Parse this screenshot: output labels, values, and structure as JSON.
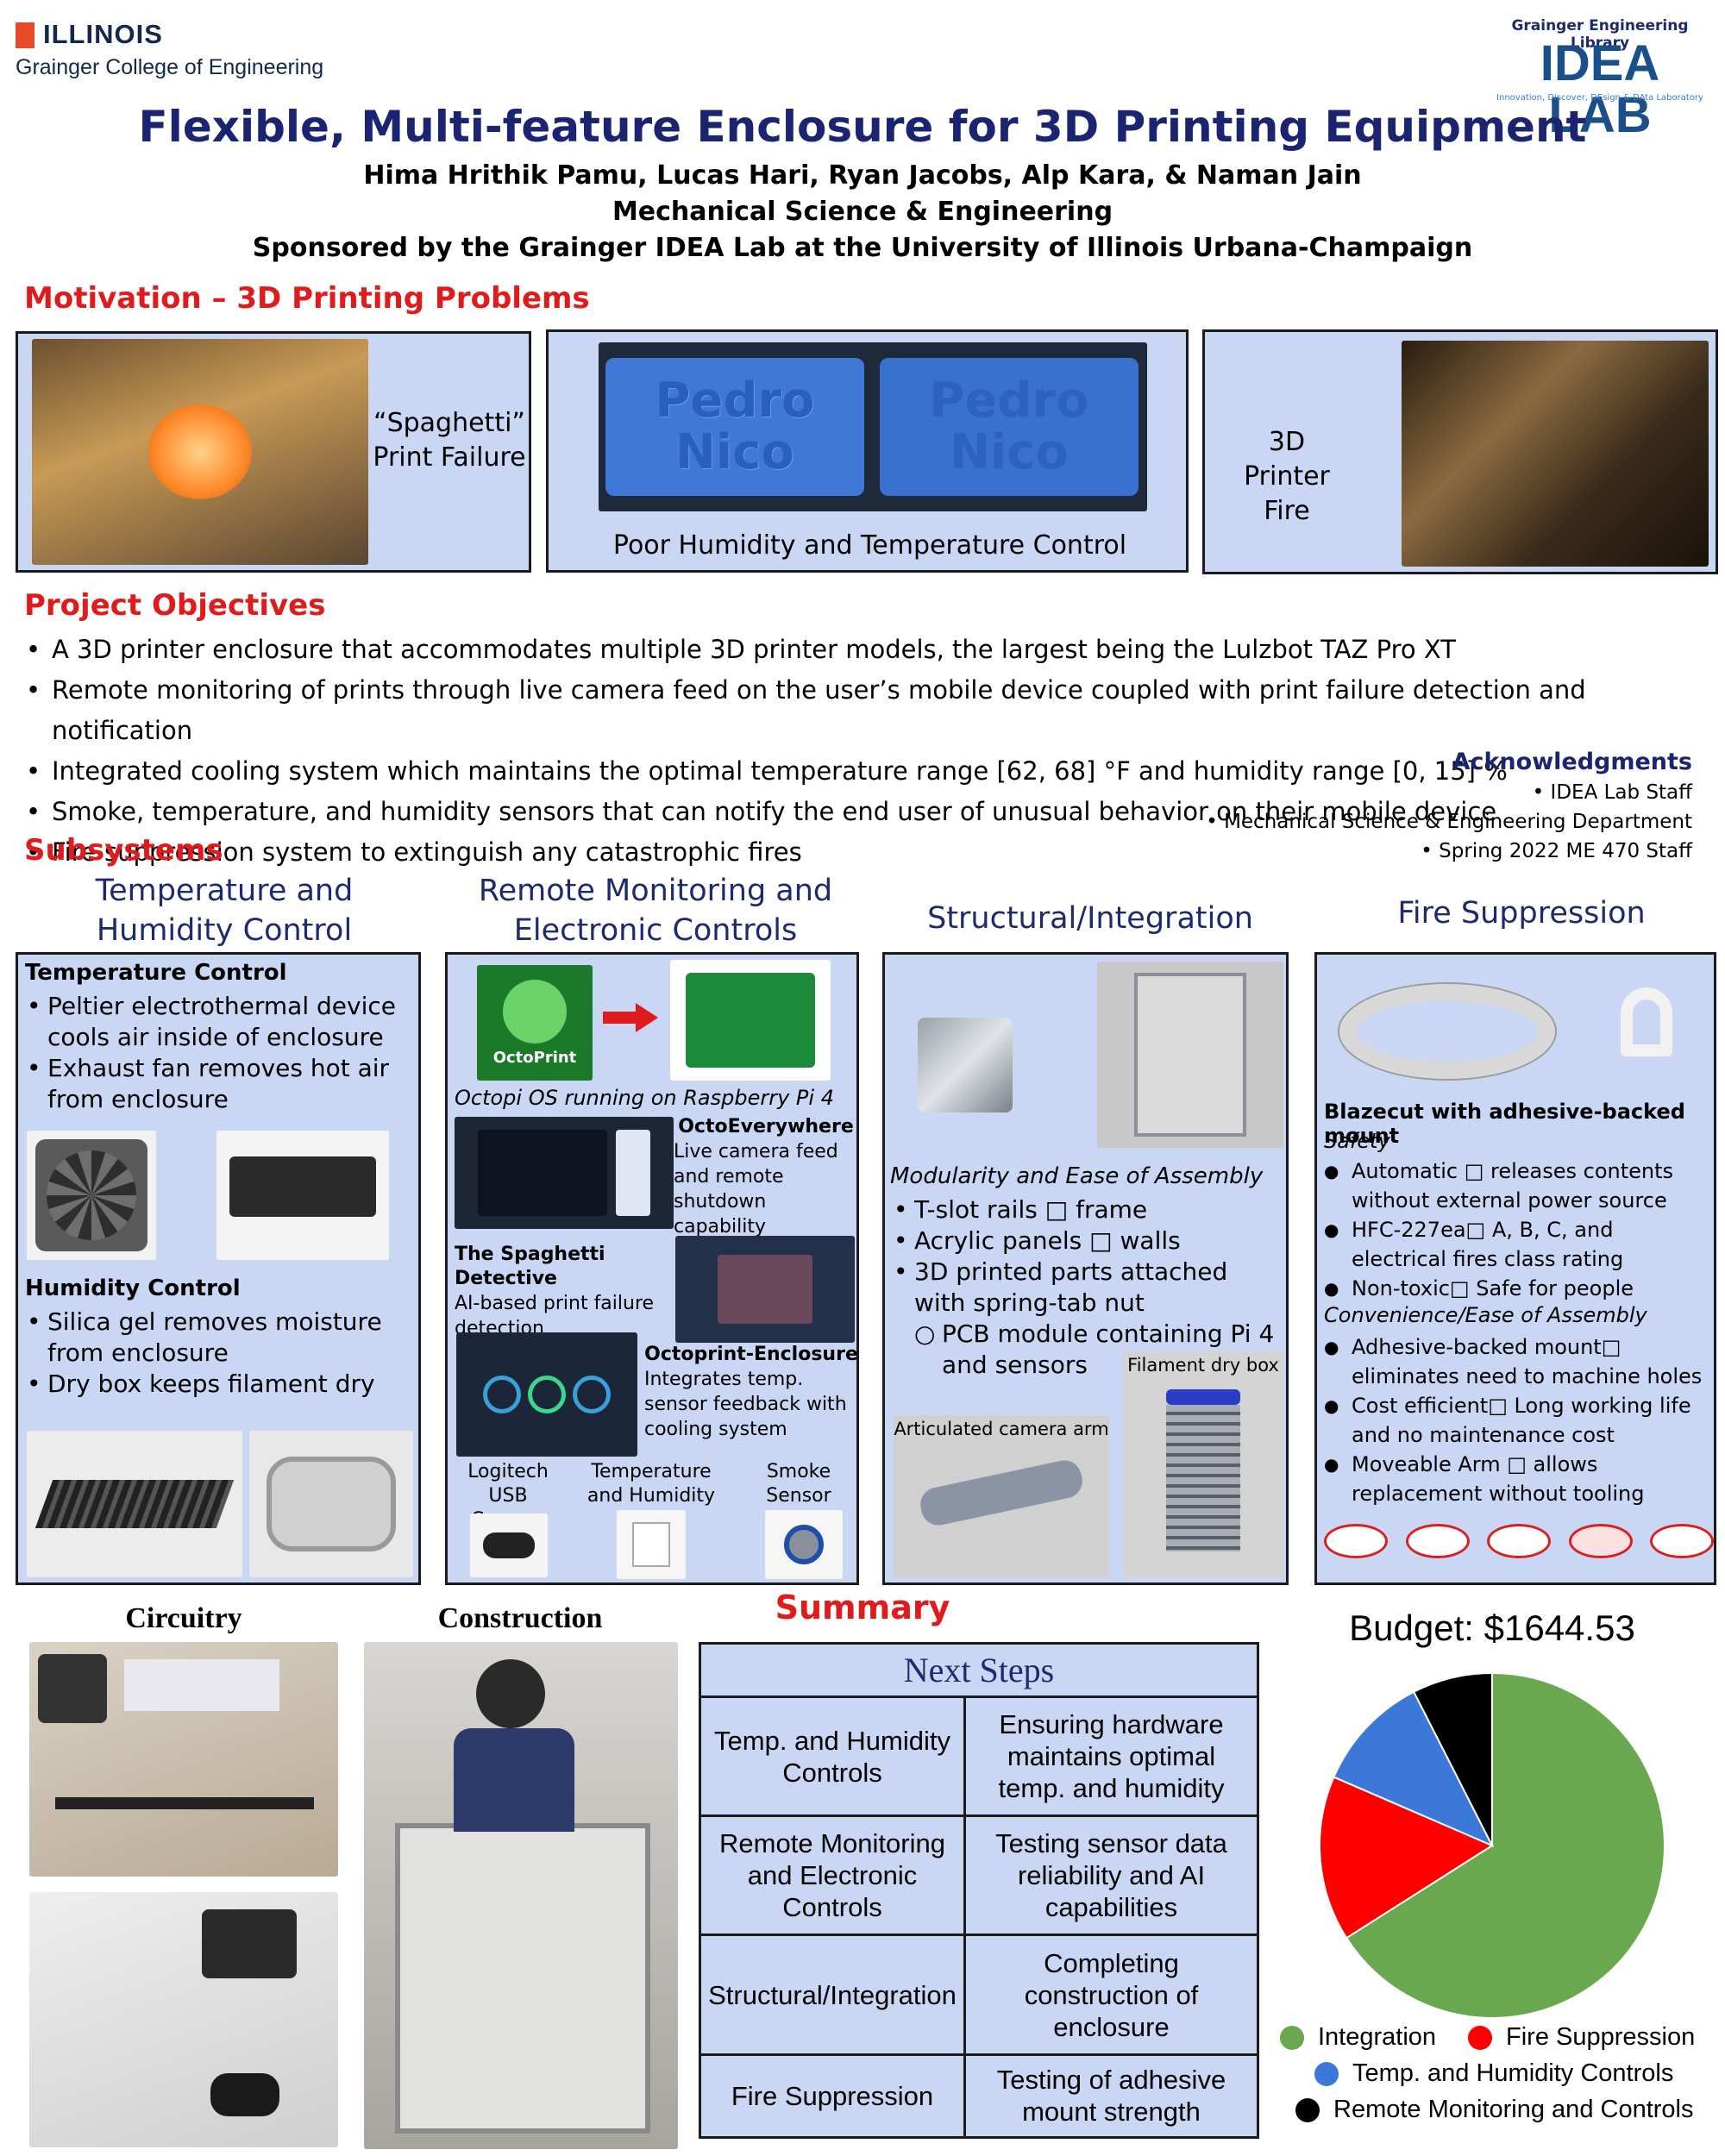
{
  "header": {
    "university": "ILLINOIS",
    "college": "Grainger College of Engineering",
    "library": "Grainger Engineering Library",
    "lab": "IDEA LAB",
    "lab_tagline": "Innovation, Discover, DEsign & DAta Laboratory",
    "title": "Flexible, Multi-feature Enclosure for 3D Printing Equipment",
    "authors": "Hima Hrithik Pamu, Lucas Hari, Ryan Jacobs, Alp Kara, & Naman Jain",
    "department": "Mechanical Science & Engineering",
    "sponsor": "Sponsored by the Grainger IDEA Lab at the University of Illinois Urbana-Champaign"
  },
  "motivation": {
    "heading": "Motivation – 3D Printing Problems",
    "spaghetti": "“Spaghetti” Print Failure",
    "humidity": "Poor Humidity and Temperature Control",
    "tag_text_1": "Pedro",
    "tag_text_2": "Nico",
    "fire": "3D Printer Fire"
  },
  "objectives": {
    "heading": "Project Objectives",
    "items": [
      "A 3D printer enclosure that accommodates multiple 3D printer models, the largest being the Lulzbot TAZ Pro XT",
      "Remote monitoring of prints through live camera feed on the user’s mobile device coupled with print failure detection and notification",
      "Integrated cooling system which maintains the optimal temperature range [62, 68] °F and humidity range [0, 15] %",
      "Smoke, temperature, and humidity sensors that can notify the end user of unusual behavior on their mobile device",
      "Fire suppression system to extinguish any catastrophic fires"
    ]
  },
  "acknowledgments": {
    "heading": "Acknowledgments",
    "items": [
      "• IDEA Lab Staff",
      "• Mechanical Science & Engineering Department",
      "• Spring 2022 ME 470 Staff"
    ]
  },
  "subsystems": {
    "heading": "Subsystems",
    "temp": {
      "title": "Temperature and Humidity Control",
      "temp_heading": "Temperature Control",
      "temp_items": [
        "Peltier electrothermal device cools air inside of enclosure",
        "Exhaust fan removes hot air from enclosure"
      ],
      "hum_heading": "Humidity Control",
      "hum_items": [
        "Silica gel removes moisture from enclosure",
        "Dry box keeps filament dry"
      ]
    },
    "remote": {
      "title": "Remote Monitoring and Electronic Controls",
      "octoprint_logo": "OctoPrint",
      "octopi_caption": "Octopi OS running on Raspberry Pi 4",
      "octoeverywhere_title": "OctoEverywhere",
      "octoeverywhere_desc": "Live camera feed and remote shutdown capability",
      "spaghetti_title": "The Spaghetti Detective",
      "spaghetti_desc": "AI-based print failure detection",
      "enclosure_title": "Octoprint-Enclosure",
      "enclosure_desc": "Integrates temp. sensor feedback with cooling system",
      "camera": "Logitech USB Camera",
      "th_sensor": "Temperature and Humidity Sensor",
      "smoke": "Smoke Sensor"
    },
    "structural": {
      "title": "Structural/Integration",
      "modularity": "Modularity and Ease of Assembly",
      "items": [
        "T-slot rails □ frame",
        "Acrylic panels □ walls",
        "3D printed parts attached with spring-tab nut"
      ],
      "sub_item": "PCB module containing Pi 4 and sensors",
      "camera_arm": "Articulated camera arm",
      "dry_box": "Filament dry box"
    },
    "fire": {
      "title": "Fire Suppression",
      "blazecut": "Blazecut with adhesive-backed mount",
      "safety": "Safety",
      "safety_items": [
        "Automatic □ releases contents without external power source",
        "HFC-227ea□ A, B, C, and electrical fires class rating",
        "Non-toxic□ Safe for people"
      ],
      "convenience": "Convenience/Ease of Assembly",
      "convenience_items": [
        "Adhesive-backed mount□ eliminates need to machine holes",
        "Cost efficient□ Long working life and no maintenance cost",
        "Moveable Arm □ allows replacement without tooling"
      ]
    }
  },
  "bottom": {
    "circuitry": "Circuitry",
    "construction": "Construction",
    "summary": "Summary",
    "next_steps": {
      "heading": "Next Steps",
      "rows": [
        [
          "Temp. and Humidity Controls",
          "Ensuring hardware maintains optimal temp. and humidity"
        ],
        [
          "Remote Monitoring and Electronic Controls",
          "Testing sensor data reliability and AI capabilities"
        ],
        [
          "Structural/Integration",
          "Completing construction of enclosure"
        ],
        [
          "Fire Suppression",
          "Testing of adhesive mount strength"
        ]
      ]
    }
  },
  "chart_data": {
    "type": "pie",
    "title": "Budget: $1644.53",
    "series": [
      {
        "name": "Integration",
        "value": 66,
        "color": "#6aa84f"
      },
      {
        "name": "Fire Suppression",
        "value": 15.5,
        "color": "#ff0000"
      },
      {
        "name": "Temp. and Humidity Controls",
        "value": 11,
        "color": "#3c78d8"
      },
      {
        "name": "Remote Monitoring and Controls",
        "value": 7.5,
        "color": "#000000"
      }
    ],
    "legend_position": "bottom"
  }
}
